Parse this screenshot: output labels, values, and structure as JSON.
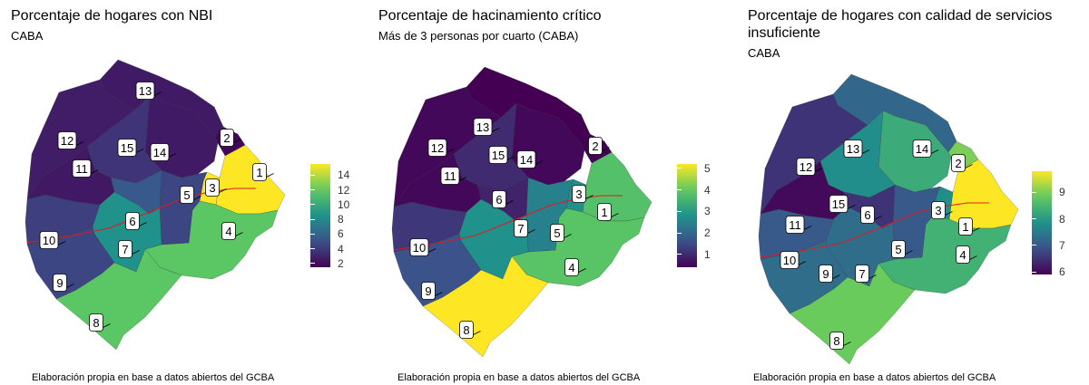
{
  "charts": [
    {
      "title": "Porcentaje de hogares con NBI",
      "subtitle": "CABA",
      "caption": "Elaboración propia en base a datos abiertos del GCBA",
      "legend_ticks": [
        "2",
        "4",
        "6",
        "8",
        "10",
        "12",
        "14"
      ]
    },
    {
      "title": "Porcentaje de hacinamiento crítico",
      "subtitle": "Más de 3 personas por cuarto (CABA)",
      "caption": "Elaboración propia en base a datos abiertos del GCBA",
      "legend_ticks": [
        "1",
        "2",
        "3",
        "4",
        "5"
      ]
    },
    {
      "title": "Porcentaje de hogares con calidad de servicios insuficiente",
      "subtitle": "CABA",
      "caption": "Elaboración propia en base a datos abiertos del GCBA",
      "legend_ticks": [
        "6",
        "7",
        "8",
        "9"
      ]
    }
  ],
  "colors": {
    "viridis": [
      "#440154",
      "#3b528b",
      "#21918c",
      "#5ec962",
      "#fde725"
    ],
    "border": "#2b2b2b",
    "avenue_line": "#e31a1c"
  },
  "chart_data": [
    {
      "type": "heatmap",
      "title": "Porcentaje de hogares con NBI",
      "subtitle": "CABA",
      "legend": {
        "min": 1.5,
        "max": 15.5,
        "ticks": [
          2,
          4,
          6,
          8,
          10,
          12,
          14
        ]
      },
      "categories": [
        "1",
        "2",
        "3",
        "4",
        "5",
        "6",
        "7",
        "8",
        "9",
        "10",
        "11",
        "12",
        "13",
        "14",
        "15"
      ],
      "values": [
        15.5,
        1.8,
        15.5,
        11.8,
        4.5,
        5.4,
        8.5,
        11.8,
        4.5,
        4.2,
        2.5,
        2.7,
        2.6,
        2.6,
        3.7
      ]
    },
    {
      "type": "heatmap",
      "title": "Porcentaje de hacinamiento crítico",
      "subtitle": "Más de 3 personas por cuarto (CABA)",
      "legend": {
        "min": 0.4,
        "max": 5.2,
        "ticks": [
          1,
          2,
          3,
          4,
          5
        ]
      },
      "categories": [
        "1",
        "2",
        "3",
        "4",
        "5",
        "6",
        "7",
        "8",
        "9",
        "10",
        "11",
        "12",
        "13",
        "14",
        "15"
      ],
      "values": [
        3.8,
        0.4,
        2.8,
        3.9,
        2.5,
        0.9,
        2.8,
        5.2,
        1.6,
        1.2,
        0.5,
        0.5,
        0.4,
        0.5,
        1.0
      ]
    },
    {
      "type": "heatmap",
      "title": "Porcentaje de hogares con calidad de servicios insuficiente",
      "subtitle": "CABA",
      "legend": {
        "min": 5.9,
        "max": 9.8,
        "ticks": [
          6,
          7,
          8,
          9
        ]
      },
      "categories": [
        "1",
        "2",
        "3",
        "4",
        "5",
        "6",
        "7",
        "8",
        "9",
        "10",
        "11",
        "12",
        "13",
        "14",
        "15"
      ],
      "values": [
        9.8,
        9.0,
        7.8,
        8.4,
        7.0,
        6.5,
        7.3,
        8.9,
        7.3,
        7.0,
        6.0,
        6.5,
        7.2,
        8.3,
        7.8
      ]
    }
  ]
}
